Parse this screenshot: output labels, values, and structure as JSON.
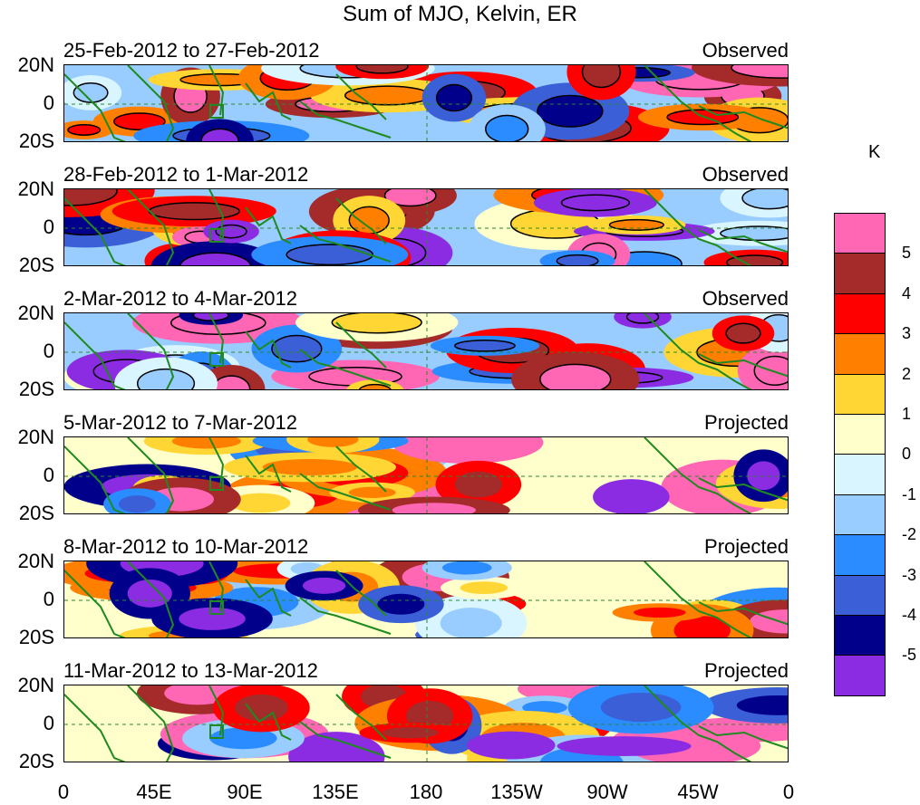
{
  "title": "Sum of MJO, Kelvin, ER",
  "colorbar": {
    "unit": "K",
    "colors": [
      "#ff66b3",
      "#a52a2a",
      "#ff0000",
      "#ff7f00",
      "#ffd633",
      "#ffffcc",
      "#d9f5ff",
      "#99ccff",
      "#2b8cff",
      "#3b5fd6",
      "#00008b",
      "#8b2be2"
    ],
    "labels": [
      "5",
      "4",
      "3",
      "2",
      "1",
      "0",
      "-1",
      "-2",
      "-3",
      "-4",
      "-5"
    ]
  },
  "y_axis_labels": [
    "20N",
    "0",
    "20S"
  ],
  "x_axis_labels": [
    "0",
    "45E",
    "90E",
    "135E",
    "180",
    "135W",
    "90W",
    "45W",
    "0"
  ],
  "panels": [
    {
      "date_range": "25-Feb-2012 to 27-Feb-2012",
      "status": "Observed"
    },
    {
      "date_range": "28-Feb-2012 to 1-Mar-2012",
      "status": "Observed"
    },
    {
      "date_range": "2-Mar-2012 to 4-Mar-2012",
      "status": "Observed"
    },
    {
      "date_range": "5-Mar-2012 to 7-Mar-2012",
      "status": "Projected"
    },
    {
      "date_range": "8-Mar-2012 to 10-Mar-2012",
      "status": "Projected"
    },
    {
      "date_range": "11-Mar-2012 to 13-Mar-2012",
      "status": "Projected"
    }
  ]
}
